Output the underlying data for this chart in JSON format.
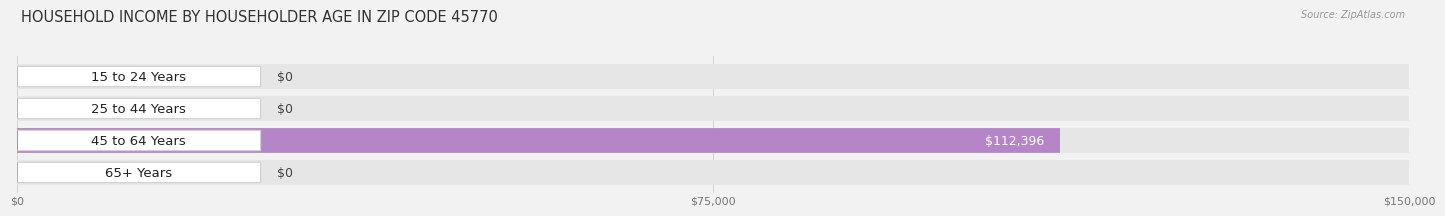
{
  "title": "HOUSEHOLD INCOME BY HOUSEHOLDER AGE IN ZIP CODE 45770",
  "source": "Source: ZipAtlas.com",
  "categories": [
    "15 to 24 Years",
    "25 to 44 Years",
    "45 to 64 Years",
    "65+ Years"
  ],
  "values": [
    0,
    0,
    112396,
    0
  ],
  "bar_colors": [
    "#f0a0aa",
    "#a0b8e0",
    "#b585c8",
    "#6ecece"
  ],
  "value_labels": [
    "$0",
    "$0",
    "$112,396",
    "$0"
  ],
  "xlim": [
    0,
    150000
  ],
  "xticks": [
    0,
    75000,
    150000
  ],
  "xtick_labels": [
    "$0",
    "$75,000",
    "$150,000"
  ],
  "background_color": "#f2f2f2",
  "bar_bg_color": "#e6e6e6",
  "title_fontsize": 10.5,
  "label_fontsize": 9.5,
  "value_fontsize": 9.0
}
